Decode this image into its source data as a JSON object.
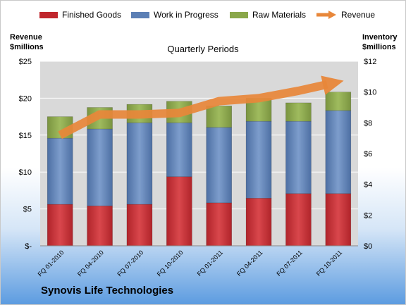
{
  "legend": {
    "finished_goods": "Finished Goods",
    "work_in_progress": "Work in Progress",
    "raw_materials": "Raw Materials",
    "revenue": "Revenue"
  },
  "left_axis_title": [
    "Revenue",
    "$millions"
  ],
  "right_axis_title": [
    "Inventory",
    "$millions"
  ],
  "subtitle": "Quarterly Periods",
  "company": "Synovis Life Technologies",
  "colors": {
    "finished_goods": "#c0272d",
    "work_in_progress": "#5b7fb5",
    "raw_materials": "#8aa74a",
    "revenue": "#e8873a",
    "plot_bg": "#d9d9d9",
    "grid": "#ffffff"
  },
  "chart_data": {
    "type": "bar",
    "stacked": true,
    "categories": [
      "FQ 01-2010",
      "FQ 04-2010",
      "FQ 07-2010",
      "FQ 10-2010",
      "FQ 01-2011",
      "FQ 04-2011",
      "FQ 07-2011",
      "FQ 10-2011"
    ],
    "series": [
      {
        "name": "Finished Goods",
        "axis": "right",
        "values": [
          2.7,
          2.6,
          2.7,
          4.5,
          2.8,
          3.1,
          3.4,
          3.4
        ]
      },
      {
        "name": "Work in Progress",
        "axis": "right",
        "values": [
          4.3,
          5.0,
          5.3,
          3.5,
          4.9,
          5.0,
          4.7,
          5.4
        ]
      },
      {
        "name": "Raw Materials",
        "axis": "right",
        "values": [
          1.4,
          1.4,
          1.2,
          1.4,
          1.4,
          1.5,
          1.2,
          1.2
        ]
      },
      {
        "name": "Revenue",
        "type": "line",
        "axis": "left",
        "values": [
          15.0,
          17.8,
          17.8,
          18.0,
          19.6,
          20.0,
          21.0,
          22.2
        ]
      }
    ],
    "left_axis": {
      "ylim": [
        0,
        25
      ],
      "ticks": [
        "$-",
        "$5",
        "$10",
        "$15",
        "$20",
        "$25"
      ]
    },
    "right_axis": {
      "ylim": [
        0,
        12
      ],
      "ticks": [
        "$0",
        "$2",
        "$4",
        "$6",
        "$8",
        "$10",
        "$12"
      ]
    },
    "grid": true,
    "legend_position": "top"
  }
}
